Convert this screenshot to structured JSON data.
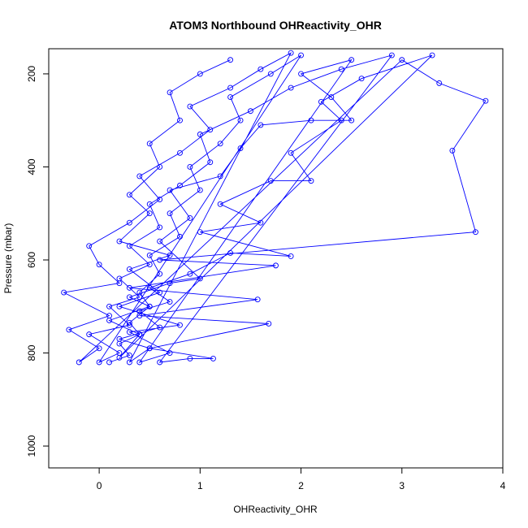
{
  "chart_data": {
    "type": "line",
    "title": "ATOM3 Northbound OHReactivity_OHR",
    "x_label": "OHReactivity_OHR",
    "y_label": "Pressure (mbar)",
    "color": "#0000ff",
    "markers": true,
    "grid": false,
    "xlim": [
      -0.5,
      4.0
    ],
    "ylim": [
      1047,
      146
    ],
    "xticks": [
      0,
      1,
      2,
      3,
      4
    ],
    "yticks": [
      200,
      400,
      600,
      800,
      1000
    ],
    "x": [
      0.1,
      0.3,
      0.2,
      0.4,
      0.3,
      0.5,
      0.4,
      0.6,
      0.5,
      0.8,
      0.7,
      1.0,
      0.9,
      1.2,
      1.4,
      1.3,
      1.7,
      2.0,
      0.0,
      0.2,
      -0.1,
      0.3,
      0.1,
      0.4,
      0.2,
      0.5,
      0.3,
      0.6,
      0.5,
      0.8,
      1.1,
      1.0,
      1.5,
      1.9,
      2.4,
      2.9,
      0.6,
      0.9,
      1.13,
      0.5,
      1.68,
      0.4,
      1.57,
      0.3,
      1.75,
      0.6,
      3.73,
      3.5,
      3.83,
      3.37,
      3.0,
      -0.2,
      0.0,
      -0.3,
      0.1,
      -0.35,
      0.2,
      0.0,
      -0.1,
      0.3,
      0.6,
      0.4,
      0.8,
      1.1,
      0.9,
      1.3,
      1.6,
      1.9,
      0.3,
      0.5,
      0.2,
      0.6,
      0.4,
      0.7,
      0.5,
      0.9,
      1.3,
      1.9,
      1.0,
      1.6,
      1.2,
      1.7,
      2.1,
      1.9,
      2.4,
      2.2,
      2.6,
      3.3,
      0.2,
      0.4,
      0.1,
      0.5,
      0.3,
      0.7,
      1.0,
      0.6,
      0.9,
      0.7,
      1.2,
      1.4,
      1.6,
      2.1,
      2.5,
      2.3,
      2.0,
      2.5,
      0.4,
      0.7,
      0.3,
      0.8,
      0.2,
      0.6,
      0.3,
      0.7,
      0.2,
      0.5,
      0.3,
      0.6,
      0.5,
      0.8,
      0.7,
      1.0,
      1.3
    ],
    "values": [
      820,
      805,
      780,
      760,
      735,
      700,
      670,
      630,
      590,
      550,
      500,
      450,
      400,
      350,
      300,
      250,
      200,
      160,
      820,
      800,
      760,
      740,
      700,
      680,
      640,
      610,
      570,
      530,
      480,
      440,
      390,
      330,
      280,
      230,
      190,
      160,
      820,
      812,
      812,
      790,
      737,
      720,
      685,
      660,
      612,
      600,
      540,
      365,
      258,
      220,
      170,
      820,
      790,
      750,
      720,
      670,
      650,
      610,
      570,
      520,
      470,
      420,
      370,
      320,
      270,
      230,
      190,
      155,
      820,
      790,
      770,
      745,
      710,
      690,
      660,
      630,
      585,
      592,
      540,
      520,
      480,
      430,
      430,
      370,
      300,
      260,
      210,
      160,
      810,
      760,
      730,
      700,
      680,
      650,
      640,
      560,
      510,
      450,
      420,
      360,
      310,
      300,
      300,
      250,
      200,
      170,
      820,
      800,
      755,
      740,
      700,
      670,
      620,
      590,
      560,
      500,
      460,
      400,
      350,
      300,
      240,
      200,
      170
    ]
  }
}
